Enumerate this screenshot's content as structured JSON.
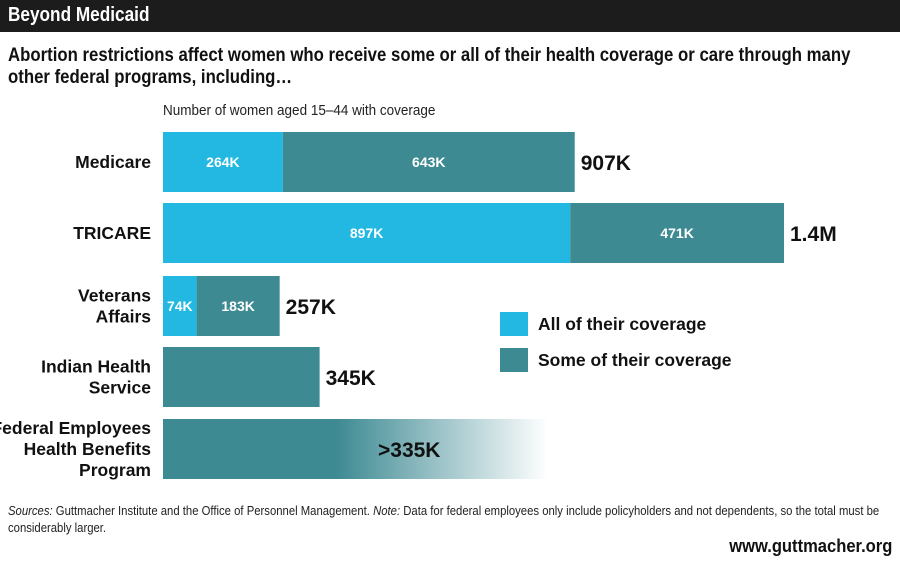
{
  "header": {
    "title": "Beyond Medicaid"
  },
  "subtitle": "Abortion restrictions affect women who receive some or all of their health coverage or care through many other federal programs, including…",
  "footer": {
    "sources_label": "Sources:",
    "sources_text": " Guttmacher Institute and the Office of Personnel Management. ",
    "note_label": "Note:",
    "note_text": " Data for federal employees only include policyholders and not dependents, so the total must be considerably larger.",
    "url": "www.guttmacher.org"
  },
  "colors": {
    "all": "#22b8e2",
    "some": "#3e8a93",
    "banner": "#1c1c1c"
  },
  "chart_data": {
    "type": "bar",
    "orientation": "horizontal",
    "stacked": true,
    "xlabel": "Number of women aged 15–44 with coverage",
    "ylabel": "",
    "xlim": [
      0,
      1500000
    ],
    "grid": false,
    "legend_position": "right",
    "categories": [
      [
        "Medicare"
      ],
      [
        "TRICARE"
      ],
      [
        "Veterans",
        "Affairs"
      ],
      [
        "Indian Health",
        "Service"
      ],
      [
        "Federal Employees",
        "Health Benefits",
        "Program"
      ]
    ],
    "series": [
      {
        "name": "All of their coverage",
        "values": [
          264000,
          897000,
          74000,
          null,
          null
        ],
        "labels": [
          "264K",
          "897K",
          "74K",
          "",
          ""
        ]
      },
      {
        "name": "Some of their coverage",
        "values": [
          643000,
          471000,
          183000,
          345000,
          335000
        ],
        "labels": [
          "643K",
          "471K",
          "183K",
          "",
          ""
        ]
      }
    ],
    "totals": [
      "907K",
      "1.4M",
      "257K",
      "345K",
      ">335K"
    ],
    "notes": [
      "",
      "",
      "",
      "",
      "Federal employees bar fades out: total is more than 335K"
    ]
  }
}
